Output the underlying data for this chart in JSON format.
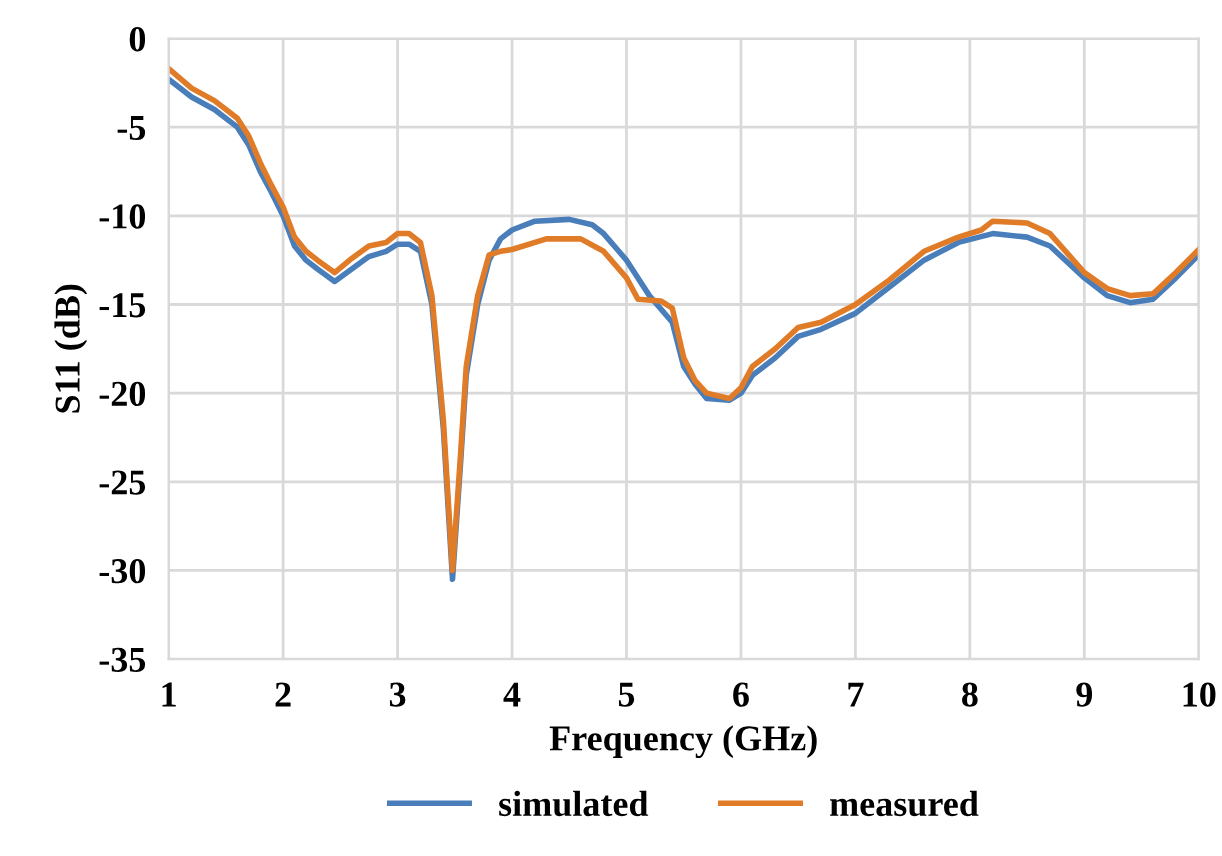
{
  "chart_data": {
    "type": "line",
    "xlabel": "Frequency (GHz)",
    "ylabel": "S11 (dB)",
    "xlim": [
      1,
      10
    ],
    "ylim": [
      -35,
      0
    ],
    "xticks": [
      1,
      2,
      3,
      4,
      5,
      6,
      7,
      8,
      9,
      10
    ],
    "yticks": [
      -35,
      -30,
      -25,
      -20,
      -15,
      -10,
      -5,
      0
    ],
    "grid": true,
    "legend": "bottom",
    "marker": "none",
    "line_style": "solid",
    "series": [
      {
        "name": "simulated",
        "color": "#4a7ebb",
        "x": [
          1.0,
          1.2,
          1.4,
          1.6,
          1.7,
          1.8,
          1.9,
          2.0,
          2.1,
          2.2,
          2.3,
          2.45,
          2.6,
          2.75,
          2.9,
          3.0,
          3.1,
          3.2,
          3.3,
          3.4,
          3.48,
          3.55,
          3.6,
          3.7,
          3.8,
          3.9,
          4.0,
          4.2,
          4.5,
          4.7,
          4.8,
          5.0,
          5.2,
          5.4,
          5.5,
          5.6,
          5.7,
          5.9,
          6.0,
          6.1,
          6.3,
          6.5,
          6.7,
          7.0,
          7.3,
          7.6,
          7.9,
          8.2,
          8.5,
          8.7,
          9.0,
          9.2,
          9.4,
          9.6,
          9.8,
          10.0
        ],
        "values": [
          -2.3,
          -3.3,
          -4.0,
          -5.0,
          -6.0,
          -7.5,
          -8.7,
          -10.0,
          -11.7,
          -12.5,
          -13.0,
          -13.7,
          -13.0,
          -12.3,
          -12.0,
          -11.6,
          -11.6,
          -12.0,
          -15,
          -22,
          -30.5,
          -24,
          -19,
          -15,
          -12.5,
          -11.3,
          -10.8,
          -10.3,
          -10.2,
          -10.5,
          -11.0,
          -12.5,
          -14.5,
          -16,
          -18.5,
          -19.5,
          -20.3,
          -20.4,
          -20,
          -19,
          -18,
          -16.8,
          -16.4,
          -15.5,
          -14,
          -12.5,
          -11.5,
          -11.0,
          -11.2,
          -11.7,
          -13.5,
          -14.5,
          -14.9,
          -14.7,
          -13.5,
          -12.2
        ]
      },
      {
        "name": "measured",
        "color": "#e07b28",
        "x": [
          1.0,
          1.2,
          1.4,
          1.6,
          1.7,
          1.8,
          1.9,
          2.0,
          2.1,
          2.2,
          2.3,
          2.45,
          2.6,
          2.75,
          2.9,
          3.0,
          3.1,
          3.2,
          3.3,
          3.4,
          3.48,
          3.55,
          3.6,
          3.7,
          3.8,
          3.9,
          4.0,
          4.3,
          4.6,
          4.8,
          5.0,
          5.1,
          5.3,
          5.4,
          5.5,
          5.6,
          5.7,
          5.9,
          6.0,
          6.1,
          6.3,
          6.5,
          6.7,
          7.0,
          7.3,
          7.6,
          7.9,
          8.1,
          8.2,
          8.5,
          8.7,
          9.0,
          9.2,
          9.4,
          9.6,
          9.8,
          10.0
        ],
        "values": [
          -1.7,
          -2.8,
          -3.5,
          -4.5,
          -5.5,
          -7.0,
          -8.3,
          -9.5,
          -11.2,
          -12.0,
          -12.5,
          -13.2,
          -12.4,
          -11.7,
          -11.5,
          -11.0,
          -11.0,
          -11.5,
          -14.5,
          -21.5,
          -30.0,
          -23.5,
          -18.5,
          -14.5,
          -12.2,
          -12.0,
          -11.9,
          -11.3,
          -11.3,
          -12.0,
          -13.5,
          -14.7,
          -14.8,
          -15.2,
          -18.0,
          -19.3,
          -20.0,
          -20.3,
          -19.7,
          -18.5,
          -17.5,
          -16.3,
          -16.0,
          -15.0,
          -13.6,
          -12.0,
          -11.2,
          -10.8,
          -10.3,
          -10.4,
          -11.0,
          -13.2,
          -14.1,
          -14.5,
          -14.4,
          -13.2,
          -11.9
        ]
      }
    ]
  }
}
